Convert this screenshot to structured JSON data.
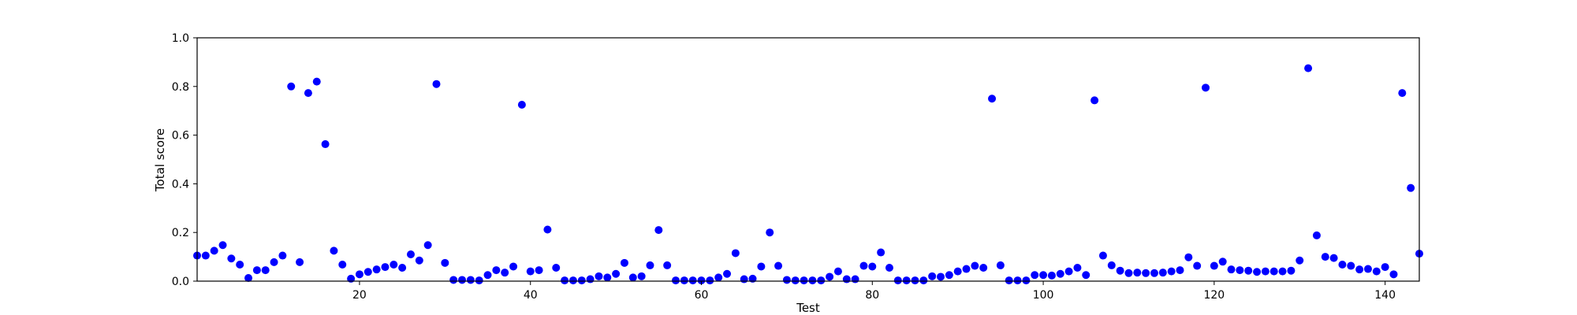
{
  "chart_data": {
    "type": "scatter",
    "xlabel": "Test",
    "ylabel": "Total score",
    "xlim": [
      1,
      144
    ],
    "ylim": [
      0,
      1.0
    ],
    "xticks": [
      20,
      40,
      60,
      80,
      100,
      120,
      140
    ],
    "xtick_labels": [
      "20",
      "40",
      "60",
      "80",
      "100",
      "120",
      "140"
    ],
    "yticks": [
      0,
      0.2,
      0.4,
      0.6,
      0.8,
      1.0
    ],
    "ytick_labels": [
      "0.0",
      "0.2",
      "0.4",
      "0.6",
      "0.8",
      "1.0"
    ],
    "grid": false,
    "marker_color": "#0000ff",
    "x": [
      1,
      2,
      3,
      4,
      5,
      6,
      7,
      8,
      9,
      10,
      11,
      12,
      13,
      14,
      15,
      16,
      17,
      18,
      19,
      20,
      21,
      22,
      23,
      24,
      25,
      26,
      27,
      28,
      29,
      30,
      31,
      32,
      33,
      34,
      35,
      36,
      37,
      38,
      39,
      40,
      41,
      42,
      43,
      44,
      45,
      46,
      47,
      48,
      49,
      50,
      51,
      52,
      53,
      54,
      55,
      56,
      57,
      58,
      59,
      60,
      61,
      62,
      63,
      64,
      65,
      66,
      67,
      68,
      69,
      70,
      71,
      72,
      73,
      74,
      75,
      76,
      77,
      78,
      79,
      80,
      81,
      82,
      83,
      84,
      85,
      86,
      87,
      88,
      89,
      90,
      91,
      92,
      93,
      94,
      95,
      96,
      97,
      98,
      99,
      100,
      101,
      102,
      103,
      104,
      105,
      106,
      107,
      108,
      109,
      110,
      111,
      112,
      113,
      114,
      115,
      116,
      117,
      118,
      119,
      120,
      121,
      122,
      123,
      124,
      125,
      126,
      127,
      128,
      129,
      130,
      131,
      132,
      133,
      134,
      135,
      136,
      137,
      138,
      139,
      140,
      141,
      142,
      143,
      144
    ],
    "y": [
      0.105,
      0.105,
      0.125,
      0.148,
      0.093,
      0.068,
      0.013,
      0.045,
      0.045,
      0.078,
      0.105,
      0.8,
      0.078,
      0.773,
      0.82,
      0.563,
      0.125,
      0.068,
      0.01,
      0.028,
      0.038,
      0.048,
      0.058,
      0.068,
      0.055,
      0.11,
      0.085,
      0.148,
      0.81,
      0.075,
      0.005,
      0.005,
      0.005,
      0.003,
      0.025,
      0.045,
      0.035,
      0.06,
      0.725,
      0.04,
      0.045,
      0.212,
      0.055,
      0.003,
      0.003,
      0.003,
      0.008,
      0.02,
      0.015,
      0.03,
      0.075,
      0.015,
      0.02,
      0.065,
      0.21,
      0.065,
      0.003,
      0.003,
      0.003,
      0.003,
      0.003,
      0.015,
      0.03,
      0.115,
      0.008,
      0.01,
      0.06,
      0.2,
      0.063,
      0.005,
      0.003,
      0.003,
      0.003,
      0.003,
      0.018,
      0.04,
      0.008,
      0.008,
      0.063,
      0.06,
      0.118,
      0.055,
      0.003,
      0.003,
      0.003,
      0.003,
      0.02,
      0.018,
      0.025,
      0.04,
      0.05,
      0.063,
      0.055,
      0.75,
      0.065,
      0.003,
      0.003,
      0.003,
      0.025,
      0.025,
      0.023,
      0.03,
      0.04,
      0.055,
      0.025,
      0.743,
      0.105,
      0.065,
      0.043,
      0.033,
      0.035,
      0.033,
      0.033,
      0.035,
      0.04,
      0.045,
      0.098,
      0.063,
      0.795,
      0.063,
      0.08,
      0.048,
      0.045,
      0.043,
      0.038,
      0.04,
      0.04,
      0.04,
      0.043,
      0.085,
      0.875,
      0.188,
      0.1,
      0.095,
      0.068,
      0.063,
      0.048,
      0.05,
      0.04,
      0.058,
      0.028,
      0.773,
      0.383,
      0.113
    ]
  }
}
